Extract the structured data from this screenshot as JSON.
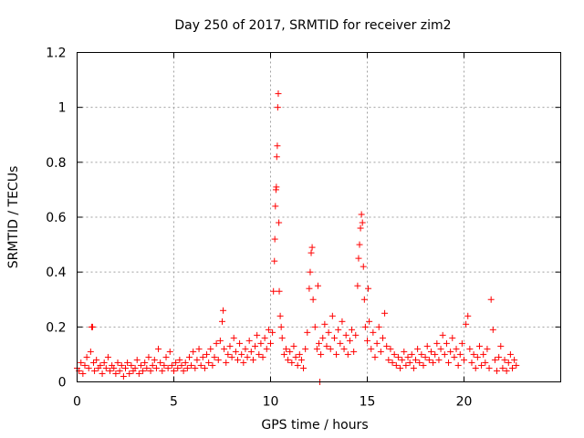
{
  "chart_data": {
    "type": "scatter",
    "title": "Day 250 of 2017, SRMTID for receiver zim2",
    "xlabel": "GPS time / hours",
    "ylabel": "SRMTID / TECUs",
    "xlim": [
      0,
      25
    ],
    "ylim": [
      0,
      1.2
    ],
    "xticks": [
      0,
      5,
      10,
      15,
      20
    ],
    "xtick_labels": [
      "0",
      "5",
      "10",
      "15",
      "20"
    ],
    "yticks": [
      0,
      0.2,
      0.4,
      0.6,
      0.8,
      1,
      1.2
    ],
    "ytick_labels": [
      "0",
      "0.2",
      "0.4",
      "0.6",
      "0.8",
      "1",
      "1.2"
    ],
    "grid": true,
    "marker": "+",
    "color": "#ff0000",
    "series": [
      {
        "name": "zim2",
        "points": [
          [
            0.0,
            0.05
          ],
          [
            0.1,
            0.04
          ],
          [
            0.2,
            0.07
          ],
          [
            0.3,
            0.03
          ],
          [
            0.4,
            0.06
          ],
          [
            0.5,
            0.09
          ],
          [
            0.6,
            0.05
          ],
          [
            0.7,
            0.11
          ],
          [
            0.75,
            0.2
          ],
          [
            0.8,
            0.2
          ],
          [
            0.85,
            0.07
          ],
          [
            0.9,
            0.04
          ],
          [
            1.0,
            0.08
          ],
          [
            1.1,
            0.05
          ],
          [
            1.2,
            0.06
          ],
          [
            1.3,
            0.03
          ],
          [
            1.4,
            0.07
          ],
          [
            1.5,
            0.05
          ],
          [
            1.6,
            0.09
          ],
          [
            1.7,
            0.04
          ],
          [
            1.8,
            0.06
          ],
          [
            1.9,
            0.05
          ],
          [
            2.0,
            0.03
          ],
          [
            2.1,
            0.07
          ],
          [
            2.2,
            0.04
          ],
          [
            2.3,
            0.06
          ],
          [
            2.4,
            0.02
          ],
          [
            2.5,
            0.05
          ],
          [
            2.6,
            0.07
          ],
          [
            2.7,
            0.03
          ],
          [
            2.8,
            0.06
          ],
          [
            2.9,
            0.04
          ],
          [
            3.0,
            0.05
          ],
          [
            3.1,
            0.08
          ],
          [
            3.2,
            0.03
          ],
          [
            3.3,
            0.06
          ],
          [
            3.4,
            0.04
          ],
          [
            3.5,
            0.07
          ],
          [
            3.6,
            0.05
          ],
          [
            3.7,
            0.09
          ],
          [
            3.8,
            0.04
          ],
          [
            3.9,
            0.06
          ],
          [
            4.0,
            0.08
          ],
          [
            4.1,
            0.05
          ],
          [
            4.2,
            0.12
          ],
          [
            4.3,
            0.07
          ],
          [
            4.4,
            0.04
          ],
          [
            4.5,
            0.06
          ],
          [
            4.6,
            0.09
          ],
          [
            4.7,
            0.05
          ],
          [
            4.8,
            0.11
          ],
          [
            4.9,
            0.06
          ],
          [
            5.0,
            0.04
          ],
          [
            5.1,
            0.07
          ],
          [
            5.2,
            0.05
          ],
          [
            5.3,
            0.08
          ],
          [
            5.4,
            0.06
          ],
          [
            5.5,
            0.04
          ],
          [
            5.6,
            0.07
          ],
          [
            5.7,
            0.05
          ],
          [
            5.8,
            0.09
          ],
          [
            5.9,
            0.06
          ],
          [
            6.0,
            0.11
          ],
          [
            6.1,
            0.05
          ],
          [
            6.2,
            0.08
          ],
          [
            6.3,
            0.12
          ],
          [
            6.4,
            0.06
          ],
          [
            6.5,
            0.09
          ],
          [
            6.6,
            0.05
          ],
          [
            6.7,
            0.1
          ],
          [
            6.8,
            0.07
          ],
          [
            6.9,
            0.12
          ],
          [
            7.0,
            0.06
          ],
          [
            7.1,
            0.09
          ],
          [
            7.2,
            0.14
          ],
          [
            7.3,
            0.08
          ],
          [
            7.4,
            0.15
          ],
          [
            7.5,
            0.22
          ],
          [
            7.55,
            0.26
          ],
          [
            7.6,
            0.12
          ],
          [
            7.7,
            0.07
          ],
          [
            7.8,
            0.1
          ],
          [
            7.9,
            0.13
          ],
          [
            8.0,
            0.09
          ],
          [
            8.1,
            0.16
          ],
          [
            8.2,
            0.11
          ],
          [
            8.3,
            0.08
          ],
          [
            8.4,
            0.14
          ],
          [
            8.5,
            0.1
          ],
          [
            8.6,
            0.07
          ],
          [
            8.7,
            0.12
          ],
          [
            8.8,
            0.09
          ],
          [
            8.9,
            0.15
          ],
          [
            9.0,
            0.11
          ],
          [
            9.1,
            0.08
          ],
          [
            9.2,
            0.13
          ],
          [
            9.3,
            0.17
          ],
          [
            9.4,
            0.1
          ],
          [
            9.5,
            0.14
          ],
          [
            9.6,
            0.09
          ],
          [
            9.7,
            0.16
          ],
          [
            9.8,
            0.12
          ],
          [
            9.9,
            0.19
          ],
          [
            10.0,
            0.14
          ],
          [
            10.1,
            0.18
          ],
          [
            10.15,
            0.33
          ],
          [
            10.2,
            0.44
          ],
          [
            10.22,
            0.52
          ],
          [
            10.25,
            0.64
          ],
          [
            10.28,
            0.7
          ],
          [
            10.3,
            0.71
          ],
          [
            10.32,
            0.82
          ],
          [
            10.35,
            0.86
          ],
          [
            10.37,
            1.0
          ],
          [
            10.4,
            1.05
          ],
          [
            10.43,
            0.58
          ],
          [
            10.45,
            0.33
          ],
          [
            10.5,
            0.24
          ],
          [
            10.55,
            0.2
          ],
          [
            10.6,
            0.16
          ],
          [
            10.7,
            0.1
          ],
          [
            10.8,
            0.12
          ],
          [
            10.9,
            0.08
          ],
          [
            11.0,
            0.11
          ],
          [
            11.1,
            0.07
          ],
          [
            11.2,
            0.13
          ],
          [
            11.3,
            0.09
          ],
          [
            11.4,
            0.06
          ],
          [
            11.5,
            0.1
          ],
          [
            11.6,
            0.08
          ],
          [
            11.7,
            0.05
          ],
          [
            11.8,
            0.12
          ],
          [
            11.9,
            0.18
          ],
          [
            12.0,
            0.34
          ],
          [
            12.05,
            0.4
          ],
          [
            12.1,
            0.47
          ],
          [
            12.15,
            0.49
          ],
          [
            12.2,
            0.3
          ],
          [
            12.3,
            0.2
          ],
          [
            12.4,
            0.12
          ],
          [
            12.45,
            0.35
          ],
          [
            12.5,
            0.14
          ],
          [
            12.55,
            0.0
          ],
          [
            12.6,
            0.1
          ],
          [
            12.7,
            0.16
          ],
          [
            12.8,
            0.21
          ],
          [
            12.9,
            0.13
          ],
          [
            13.0,
            0.18
          ],
          [
            13.1,
            0.12
          ],
          [
            13.2,
            0.24
          ],
          [
            13.3,
            0.16
          ],
          [
            13.4,
            0.1
          ],
          [
            13.5,
            0.19
          ],
          [
            13.6,
            0.14
          ],
          [
            13.7,
            0.22
          ],
          [
            13.8,
            0.12
          ],
          [
            13.9,
            0.17
          ],
          [
            14.0,
            0.1
          ],
          [
            14.1,
            0.15
          ],
          [
            14.2,
            0.19
          ],
          [
            14.3,
            0.11
          ],
          [
            14.4,
            0.17
          ],
          [
            14.5,
            0.35
          ],
          [
            14.55,
            0.45
          ],
          [
            14.6,
            0.5
          ],
          [
            14.65,
            0.56
          ],
          [
            14.7,
            0.61
          ],
          [
            14.75,
            0.58
          ],
          [
            14.8,
            0.42
          ],
          [
            14.85,
            0.3
          ],
          [
            14.9,
            0.2
          ],
          [
            15.0,
            0.15
          ],
          [
            15.05,
            0.34
          ],
          [
            15.1,
            0.22
          ],
          [
            15.2,
            0.12
          ],
          [
            15.3,
            0.18
          ],
          [
            15.4,
            0.09
          ],
          [
            15.5,
            0.14
          ],
          [
            15.6,
            0.2
          ],
          [
            15.7,
            0.11
          ],
          [
            15.8,
            0.16
          ],
          [
            15.9,
            0.25
          ],
          [
            16.0,
            0.13
          ],
          [
            16.1,
            0.08
          ],
          [
            16.2,
            0.12
          ],
          [
            16.3,
            0.07
          ],
          [
            16.4,
            0.1
          ],
          [
            16.5,
            0.06
          ],
          [
            16.6,
            0.09
          ],
          [
            16.7,
            0.05
          ],
          [
            16.8,
            0.08
          ],
          [
            16.9,
            0.11
          ],
          [
            17.0,
            0.06
          ],
          [
            17.1,
            0.09
          ],
          [
            17.2,
            0.07
          ],
          [
            17.3,
            0.1
          ],
          [
            17.4,
            0.05
          ],
          [
            17.5,
            0.08
          ],
          [
            17.6,
            0.12
          ],
          [
            17.7,
            0.07
          ],
          [
            17.8,
            0.1
          ],
          [
            17.9,
            0.06
          ],
          [
            18.0,
            0.09
          ],
          [
            18.1,
            0.13
          ],
          [
            18.2,
            0.08
          ],
          [
            18.3,
            0.11
          ],
          [
            18.4,
            0.07
          ],
          [
            18.5,
            0.1
          ],
          [
            18.6,
            0.14
          ],
          [
            18.7,
            0.08
          ],
          [
            18.8,
            0.12
          ],
          [
            18.9,
            0.17
          ],
          [
            19.0,
            0.1
          ],
          [
            19.1,
            0.14
          ],
          [
            19.2,
            0.07
          ],
          [
            19.3,
            0.11
          ],
          [
            19.4,
            0.16
          ],
          [
            19.5,
            0.09
          ],
          [
            19.6,
            0.12
          ],
          [
            19.7,
            0.06
          ],
          [
            19.8,
            0.1
          ],
          [
            19.9,
            0.14
          ],
          [
            20.0,
            0.08
          ],
          [
            20.1,
            0.21
          ],
          [
            20.2,
            0.24
          ],
          [
            20.3,
            0.12
          ],
          [
            20.4,
            0.07
          ],
          [
            20.5,
            0.1
          ],
          [
            20.6,
            0.05
          ],
          [
            20.7,
            0.09
          ],
          [
            20.8,
            0.13
          ],
          [
            20.9,
            0.06
          ],
          [
            21.0,
            0.1
          ],
          [
            21.1,
            0.07
          ],
          [
            21.2,
            0.12
          ],
          [
            21.3,
            0.05
          ],
          [
            21.4,
            0.3
          ],
          [
            21.5,
            0.19
          ],
          [
            21.6,
            0.08
          ],
          [
            21.7,
            0.04
          ],
          [
            21.8,
            0.09
          ],
          [
            21.9,
            0.13
          ],
          [
            22.0,
            0.05
          ],
          [
            22.1,
            0.08
          ],
          [
            22.2,
            0.04
          ],
          [
            22.3,
            0.07
          ],
          [
            22.4,
            0.1
          ],
          [
            22.5,
            0.05
          ],
          [
            22.6,
            0.08
          ],
          [
            22.7,
            0.06
          ]
        ]
      }
    ]
  }
}
